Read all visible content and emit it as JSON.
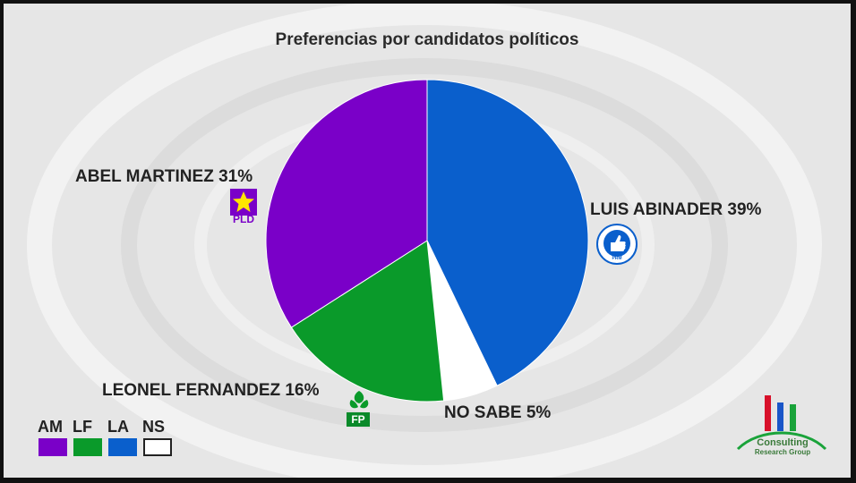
{
  "chart_data": {
    "type": "pie",
    "title": "Preferencias por candidatos políticos",
    "slices": [
      {
        "key": "LA",
        "label": "LUIS ABINADER 39%",
        "value": 39,
        "color": "#0a5fcc"
      },
      {
        "key": "NS",
        "label": "NO SABE 5%",
        "value": 5,
        "color": "#ffffff"
      },
      {
        "key": "LF",
        "label": "LEONEL FERNANDEZ 16%",
        "value": 16,
        "color": "#0a9a2a"
      },
      {
        "key": "AM",
        "label": "ABEL MARTINEZ 31%",
        "value": 31,
        "color": "#7a00c8"
      }
    ],
    "legend": [
      {
        "abbr": "AM",
        "color": "#7a00c8"
      },
      {
        "abbr": "LF",
        "color": "#0a9a2a"
      },
      {
        "abbr": "LA",
        "color": "#0a5fcc"
      },
      {
        "abbr": "NS",
        "color": "#ffffff"
      }
    ],
    "legend_position": "bottom-left"
  },
  "logos": {
    "pld": {
      "text": "PLD",
      "icon": "star-icon"
    },
    "fp": {
      "text": "FP",
      "icon": "leaf-icon"
    },
    "prm": {
      "text": "PRM",
      "icon": "thumbs-up-icon"
    }
  },
  "brand": {
    "name": "Consulting",
    "sub": "Research Group"
  }
}
